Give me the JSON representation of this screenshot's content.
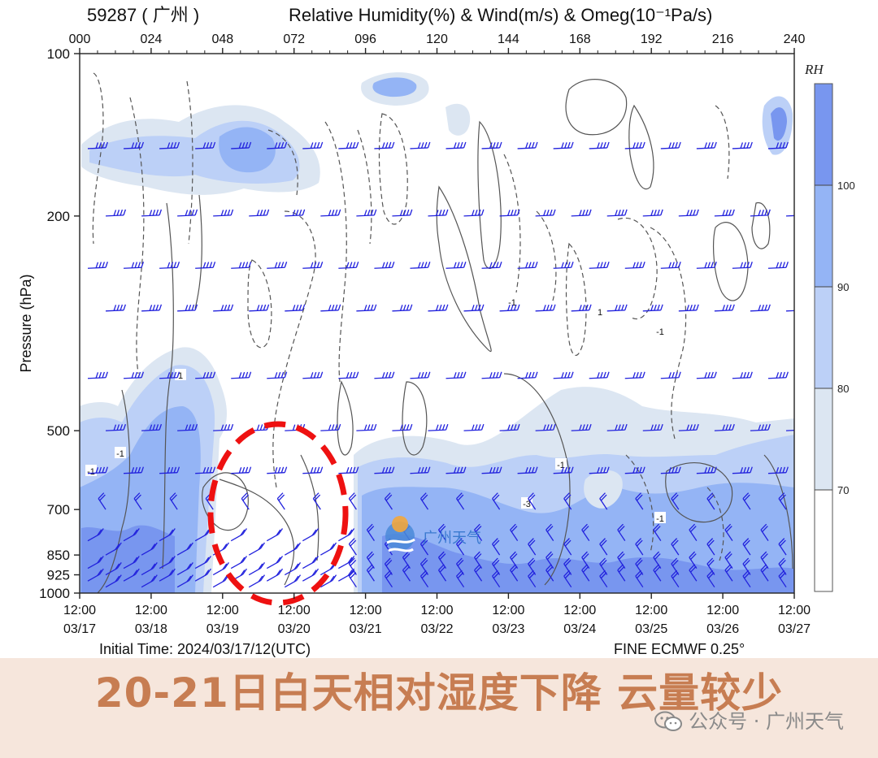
{
  "chart_data": {
    "type": "heatmap",
    "station": "59287 ( 广州 )",
    "title": "Relative Humidity(%) & Wind(m/s) & Omeg(10⁻¹Pa/s)",
    "ylabel": "Pressure (hPa)",
    "y_ticks": [
      100,
      200,
      500,
      700,
      850,
      925,
      1000
    ],
    "y_scale": "log",
    "ylim": [
      1000,
      100
    ],
    "top_ticks": [
      "000",
      "024",
      "048",
      "072",
      "096",
      "120",
      "144",
      "168",
      "192",
      "216",
      "240"
    ],
    "bottom_ticks": [
      {
        "time": "12:00",
        "date": "03/17"
      },
      {
        "time": "12:00",
        "date": "03/18"
      },
      {
        "time": "12:00",
        "date": "03/19"
      },
      {
        "time": "12:00",
        "date": "03/20"
      },
      {
        "time": "12:00",
        "date": "03/21"
      },
      {
        "time": "12:00",
        "date": "03/22"
      },
      {
        "time": "12:00",
        "date": "03/23"
      },
      {
        "time": "12:00",
        "date": "03/24"
      },
      {
        "time": "12:00",
        "date": "03/25"
      },
      {
        "time": "12:00",
        "date": "03/26"
      },
      {
        "time": "12:00",
        "date": "03/27"
      }
    ],
    "colorbar": {
      "label": "RH",
      "levels": [
        70,
        80,
        90,
        100
      ],
      "colors": [
        "#ffffff",
        "#dce6f2",
        "#bcd0f7",
        "#94b4f5",
        "#7896ef"
      ]
    },
    "omega_contour_labels": [
      "-1",
      "-1",
      "1",
      "-1",
      "1",
      "-1",
      "-1",
      "-3",
      "-1"
    ],
    "footer_left": "Initial Time: 2024/03/17/12(UTC)",
    "footer_right": "FINE ECMWF  0.25°",
    "watermark": "广州天气"
  },
  "caption": "20-21日白天相对湿度下降 云量较少",
  "account": "公众号 · 广州天气",
  "colors": {
    "wind_barb": "#2222dd",
    "contour": "#555555",
    "highlight": "#ee1111",
    "caption": "#c77d52",
    "caption_bg": "#f6e6dc"
  }
}
